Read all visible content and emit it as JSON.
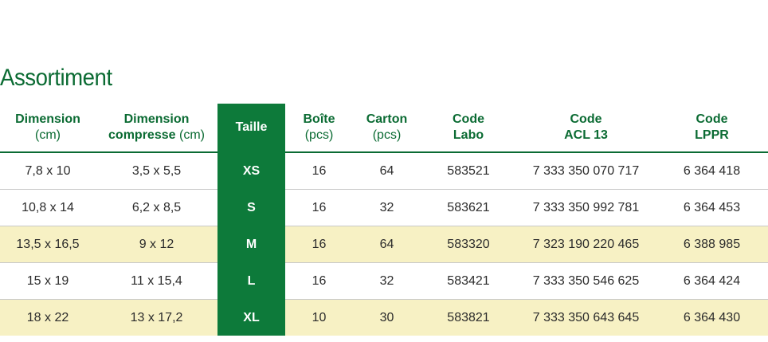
{
  "title": "Assortiment",
  "headers": {
    "dimension": {
      "main": "Dimension",
      "sub": "(cm)"
    },
    "dimension_compresse": {
      "main": "Dimension",
      "main2": "compresse",
      "sub": "(cm)"
    },
    "taille": {
      "main": "Taille"
    },
    "boite": {
      "main": "Boîte",
      "sub": "(pcs)"
    },
    "carton": {
      "main": "Carton",
      "sub": "(pcs)"
    },
    "code_labo": {
      "main": "Code",
      "sub": "Labo"
    },
    "code_acl": {
      "main": "Code",
      "sub": "ACL 13"
    },
    "code_lppr": {
      "main": "Code",
      "sub": "LPPR"
    }
  },
  "rows": [
    {
      "dimension": "7,8 x 10",
      "compresse": "3,5 x 5,5",
      "taille": "XS",
      "boite": "16",
      "carton": "64",
      "labo": "583521",
      "acl": "7 333 350 070 717",
      "lppr": "6 364 418",
      "highlight": false
    },
    {
      "dimension": "10,8 x 14",
      "compresse": "6,2 x 8,5",
      "taille": "S",
      "boite": "16",
      "carton": "32",
      "labo": "583621",
      "acl": "7 333 350 992 781",
      "lppr": "6 364 453",
      "highlight": false
    },
    {
      "dimension": "13,5 x 16,5",
      "compresse": "9 x 12",
      "taille": "M",
      "boite": "16",
      "carton": "64",
      "labo": "583320",
      "acl": "7 323 190 220 465",
      "lppr": "6 388 985",
      "highlight": true
    },
    {
      "dimension": "15 x 19",
      "compresse": "11 x 15,4",
      "taille": "L",
      "boite": "16",
      "carton": "32",
      "labo": "583421",
      "acl": "7 333 350 546 625",
      "lppr": "6 364 424",
      "highlight": false
    },
    {
      "dimension": "18 x 22",
      "compresse": "13 x 17,2",
      "taille": "XL",
      "boite": "10",
      "carton": "30",
      "labo": "583821",
      "acl": "7 333 350 643 645",
      "lppr": "6 364 430",
      "highlight": true
    }
  ],
  "colors": {
    "brand_green": "#0d7a3a",
    "header_text_green": "#0b6b33",
    "highlight_row": "#f7f1c4"
  }
}
